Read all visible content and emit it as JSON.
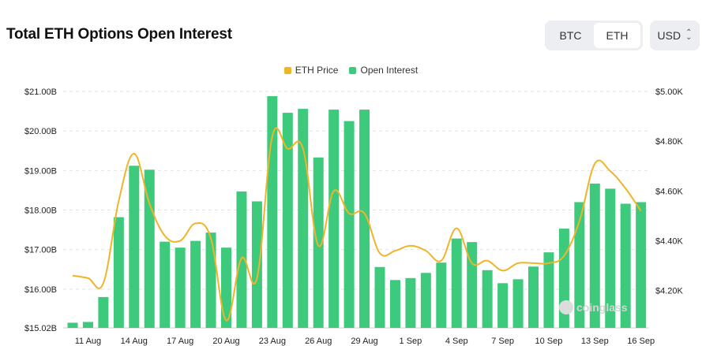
{
  "header": {
    "title": "Total ETH Options Open Interest"
  },
  "asset_toggle": {
    "options": [
      "BTC",
      "ETH"
    ],
    "selected": "ETH"
  },
  "currency_select": {
    "value": "USD"
  },
  "legend": {
    "price_label": "ETH Price",
    "oi_label": "Open Interest"
  },
  "colors": {
    "price": "#f0b429",
    "oi": "#3dca7c",
    "grid": "#e3e3e3"
  },
  "watermark": {
    "text": "coinglass"
  },
  "chart_data": {
    "type": "bar",
    "x_tick_labels": [
      "11 Aug",
      "14 Aug",
      "17 Aug",
      "20 Aug",
      "23 Aug",
      "26 Aug",
      "29 Aug",
      "1 Sep",
      "4 Sep",
      "7 Sep",
      "10 Sep",
      "13 Sep",
      "16 Sep"
    ],
    "left_axis": {
      "ticks": [
        "$15.02B",
        "$16.00B",
        "$17.00B",
        "$18.00B",
        "$19.00B",
        "$20.00B",
        "$21.00B"
      ],
      "tick_values": [
        15.02,
        16,
        17,
        18,
        19,
        20,
        21
      ],
      "ylim": [
        15.02,
        21.0
      ],
      "unit": "B USD"
    },
    "right_axis": {
      "ticks": [
        "$4.20K",
        "$4.40K",
        "$4.60K",
        "$4.80K",
        "$5.00K"
      ],
      "tick_values": [
        4.2,
        4.4,
        4.6,
        4.8,
        5.0
      ],
      "ylim": [
        4.05,
        5.0
      ],
      "unit": "K USD"
    },
    "categories": [
      "10 Aug",
      "11 Aug",
      "12 Aug",
      "13 Aug",
      "14 Aug",
      "15 Aug",
      "16 Aug",
      "17 Aug",
      "18 Aug",
      "19 Aug",
      "20 Aug",
      "21 Aug",
      "22 Aug",
      "23 Aug",
      "24 Aug",
      "25 Aug",
      "26 Aug",
      "27 Aug",
      "28 Aug",
      "29 Aug",
      "30 Aug",
      "31 Aug",
      "1 Sep",
      "2 Sep",
      "3 Sep",
      "4 Sep",
      "5 Sep",
      "6 Sep",
      "7 Sep",
      "8 Sep",
      "9 Sep",
      "10 Sep",
      "11 Sep",
      "12 Sep",
      "13 Sep",
      "14 Sep",
      "15 Sep",
      "16 Sep"
    ],
    "series": [
      {
        "name": "Open Interest",
        "type": "bar",
        "axis": "left",
        "values": [
          15.15,
          15.17,
          15.8,
          17.82,
          19.12,
          19.02,
          17.2,
          17.05,
          17.22,
          17.43,
          17.05,
          18.47,
          18.22,
          20.88,
          20.46,
          20.56,
          19.33,
          20.54,
          20.25,
          20.54,
          16.56,
          16.23,
          16.28,
          16.41,
          16.67,
          17.28,
          17.19,
          16.48,
          16.15,
          16.25,
          16.57,
          16.93,
          17.53,
          18.2,
          18.67,
          18.54,
          18.16,
          18.2
        ]
      },
      {
        "name": "ETH Price",
        "type": "line",
        "axis": "right",
        "values": [
          4.26,
          4.25,
          4.23,
          4.56,
          4.75,
          4.55,
          4.42,
          4.4,
          4.47,
          4.41,
          4.08,
          4.33,
          4.25,
          4.82,
          4.77,
          4.77,
          4.38,
          4.6,
          4.51,
          4.51,
          4.35,
          4.36,
          4.38,
          4.36,
          4.32,
          4.45,
          4.31,
          4.32,
          4.28,
          4.31,
          4.31,
          4.31,
          4.34,
          4.48,
          4.71,
          4.68,
          4.61,
          4.52
        ]
      }
    ]
  }
}
